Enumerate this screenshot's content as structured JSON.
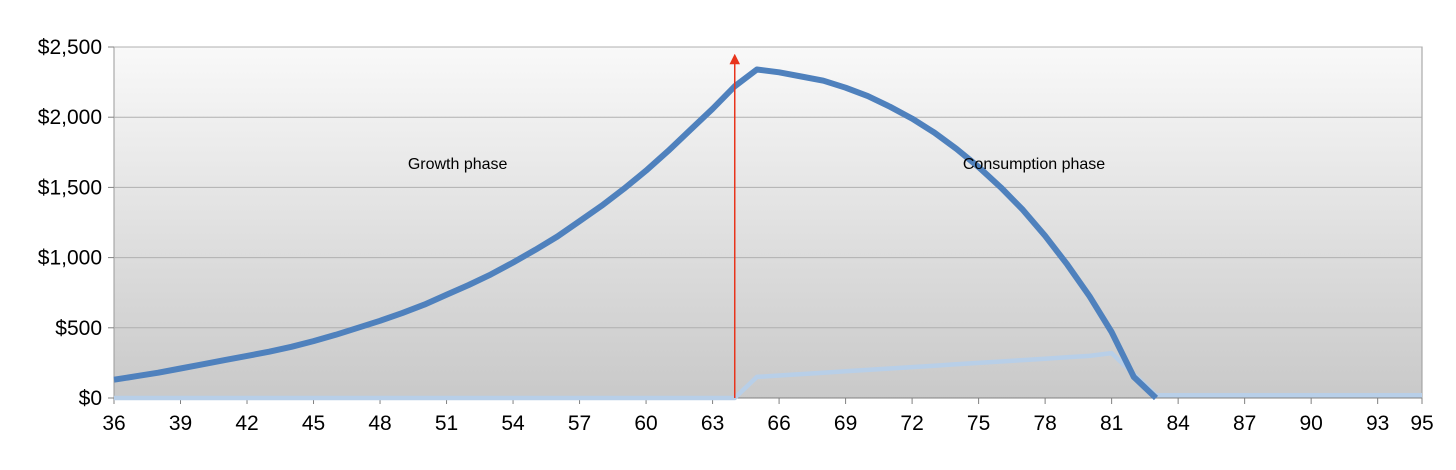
{
  "chart_data": {
    "type": "line",
    "title": "",
    "xlabel": "",
    "ylabel": "",
    "xlim": [
      36,
      95
    ],
    "ylim": [
      0,
      2500
    ],
    "y_ticks": [
      0,
      500,
      1000,
      1500,
      2000,
      2500
    ],
    "y_tick_labels": [
      "$0",
      "$500",
      "$1,000",
      "$1,500",
      "$2,000",
      "$2,500"
    ],
    "x_ticks": [
      36,
      39,
      42,
      45,
      48,
      51,
      54,
      57,
      60,
      63,
      66,
      69,
      72,
      75,
      78,
      81,
      84,
      87,
      90,
      93,
      95
    ],
    "x_tick_labels": [
      "36",
      "39",
      "42",
      "45",
      "48",
      "51",
      "54",
      "57",
      "60",
      "63",
      "66",
      "69",
      "72",
      "75",
      "78",
      "81",
      "84",
      "87",
      "90",
      "93",
      "95"
    ],
    "grid": true,
    "legend": "none",
    "colors": {
      "balance": "#4f81bd",
      "withdrawal": "#b8cfe8",
      "retirement_marker": "#e8341c",
      "grid": "#b0b0b0"
    },
    "series": [
      {
        "x": [
          36,
          37,
          38,
          39,
          40,
          41,
          42,
          43,
          44,
          45,
          46,
          47,
          48,
          49,
          50,
          51,
          52,
          53,
          54,
          55,
          56,
          57,
          58,
          59,
          60,
          61,
          62,
          63,
          64,
          65,
          66,
          67,
          68,
          69,
          70,
          71,
          72,
          73,
          74,
          75,
          76,
          77,
          78,
          79,
          80,
          81,
          82,
          83
        ],
        "values": [
          130,
          155,
          180,
          210,
          240,
          270,
          300,
          330,
          365,
          405,
          450,
          500,
          550,
          605,
          665,
          735,
          805,
          880,
          965,
          1055,
          1150,
          1260,
          1370,
          1490,
          1620,
          1760,
          1910,
          2060,
          2220,
          2340,
          2320,
          2290,
          2260,
          2210,
          2150,
          2075,
          1990,
          1890,
          1775,
          1645,
          1500,
          1340,
          1155,
          950,
          725,
          470,
          150,
          0
        ]
      },
      {
        "x": [
          36,
          63,
          64,
          65,
          66,
          67,
          68,
          69,
          70,
          71,
          72,
          73,
          74,
          75,
          76,
          77,
          78,
          79,
          80,
          81,
          82,
          83,
          95
        ],
        "values": [
          0,
          0,
          0,
          150,
          160,
          170,
          180,
          190,
          200,
          210,
          220,
          230,
          240,
          250,
          260,
          270,
          280,
          290,
          300,
          320,
          170,
          20,
          20
        ]
      }
    ],
    "marker": {
      "x": 64,
      "y": 2500
    },
    "annotations": [
      {
        "text": "Growth phase",
        "x": 51.5,
        "y": 1630
      },
      {
        "text": "Consumption phase",
        "x": 77.5,
        "y": 1630
      }
    ]
  }
}
